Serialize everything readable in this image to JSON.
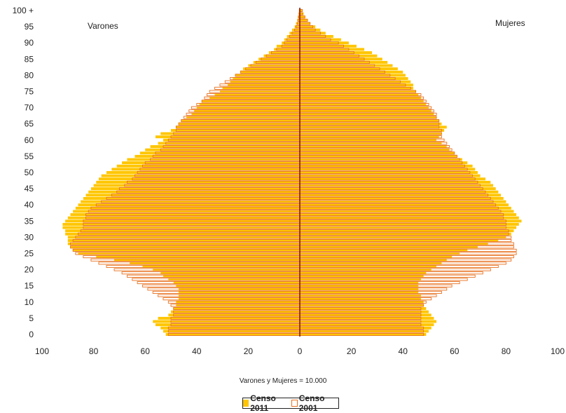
{
  "chart_data": {
    "type": "bar",
    "orientation": "horizontal-population-pyramid",
    "left_label": "Varones",
    "right_label": "Mujeres",
    "note": "Varones y Mujeres = 10.000",
    "x_ticks": [
      "100",
      "80",
      "60",
      "40",
      "20",
      "0",
      "20",
      "40",
      "60",
      "80",
      "100"
    ],
    "y_ticks": [
      "0",
      "5",
      "10",
      "15",
      "20",
      "25",
      "30",
      "35",
      "40",
      "45",
      "50",
      "55",
      "60",
      "65",
      "70",
      "75",
      "80",
      "85",
      "90",
      "95",
      "100 +"
    ],
    "xlim": [
      -100,
      100
    ],
    "ylim": [
      0,
      100
    ],
    "colors": {
      "censo_2011": "#FFC600",
      "censo_2001": "#E8701E",
      "center_line": "#8B1A00"
    },
    "series_meta": [
      {
        "name": "Censo 2011",
        "style": "filled"
      },
      {
        "name": "Censo 2001",
        "style": "outline"
      }
    ],
    "male_2011": [
      52,
      53,
      54,
      56,
      57,
      55,
      51,
      50,
      49,
      48,
      48,
      47,
      47,
      47,
      47,
      48,
      49,
      51,
      53,
      54,
      57,
      61,
      66,
      72,
      79,
      86,
      88,
      89,
      90,
      90,
      90,
      91,
      91,
      92,
      92,
      91,
      90,
      89,
      88,
      87,
      86,
      85,
      84,
      83,
      82,
      81,
      80,
      79,
      78,
      77,
      75,
      73,
      71,
      69,
      67,
      64,
      62,
      60,
      58,
      55,
      53,
      56,
      54,
      50,
      48,
      47,
      46,
      44,
      42,
      41,
      40,
      39,
      38,
      35,
      33,
      31,
      30,
      28,
      27,
      26,
      25,
      23,
      22,
      20,
      18,
      16,
      14,
      12,
      10,
      9,
      7,
      6,
      5,
      4,
      3,
      2,
      1.5,
      1,
      0.8,
      0.5,
      0.3
    ],
    "male_2001": [
      51,
      51,
      51,
      50,
      50,
      50,
      49,
      49,
      49,
      50,
      51,
      53,
      55,
      57,
      59,
      61,
      63,
      65,
      67,
      69,
      72,
      75,
      78,
      81,
      84,
      87,
      88,
      89,
      89,
      88,
      87,
      86,
      85,
      84,
      84,
      84,
      83,
      83,
      82,
      81,
      79,
      77,
      75,
      73,
      71,
      70,
      68,
      67,
      65,
      64,
      63,
      62,
      61,
      60,
      58,
      57,
      56,
      54,
      53,
      52,
      51,
      50,
      49,
      48,
      48,
      47,
      46,
      45,
      44,
      43,
      42,
      40,
      38,
      37,
      36,
      35,
      33,
      31,
      29,
      27,
      25,
      23,
      21,
      19,
      17,
      15,
      13,
      11,
      9,
      7,
      6,
      5,
      4,
      3,
      2,
      1.5,
      1,
      0.7,
      0.5,
      0.3,
      0.2
    ],
    "female_2011": [
      49,
      50,
      51,
      52,
      53,
      52,
      51,
      50,
      49,
      48,
      48,
      47,
      47,
      46,
      46,
      46,
      46,
      47,
      48,
      49,
      51,
      53,
      55,
      57,
      59,
      62,
      65,
      69,
      73,
      77,
      80,
      82,
      83,
      84,
      85,
      86,
      85,
      84,
      83,
      82,
      81,
      80,
      79,
      78,
      77,
      76,
      75,
      74,
      72,
      70,
      69,
      68,
      67,
      65,
      63,
      61,
      60,
      58,
      57,
      55,
      53,
      54,
      55,
      56,
      57,
      55,
      54,
      53,
      52,
      51,
      50,
      49,
      48,
      47,
      46,
      45,
      44,
      44,
      43,
      42,
      41,
      40,
      38,
      36,
      34,
      32,
      30,
      28,
      25,
      22,
      19,
      16,
      13,
      10,
      8,
      6,
      4,
      3,
      2,
      1.5,
      1
    ],
    "female_2001": [
      48,
      48,
      48,
      47,
      47,
      47,
      47,
      47,
      47,
      48,
      49,
      51,
      53,
      55,
      57,
      59,
      62,
      65,
      68,
      71,
      74,
      77,
      80,
      82,
      83,
      84,
      84,
      83,
      83,
      82,
      82,
      81,
      81,
      80,
      80,
      80,
      79,
      79,
      78,
      77,
      76,
      75,
      74,
      73,
      72,
      71,
      70,
      69,
      68,
      67,
      66,
      65,
      64,
      63,
      62,
      61,
      60,
      59,
      58,
      57,
      56,
      55,
      55,
      55,
      54,
      54,
      54,
      53,
      53,
      52,
      51,
      50,
      49,
      48,
      47,
      45,
      43,
      41,
      39,
      37,
      35,
      33,
      31,
      29,
      27,
      25,
      23,
      21,
      19,
      17,
      15,
      12,
      10,
      8,
      6,
      5,
      4,
      3,
      2,
      1,
      1
    ]
  },
  "legend": {
    "item_2011": "Censo 2011",
    "item_2001": "Censo 2001"
  }
}
